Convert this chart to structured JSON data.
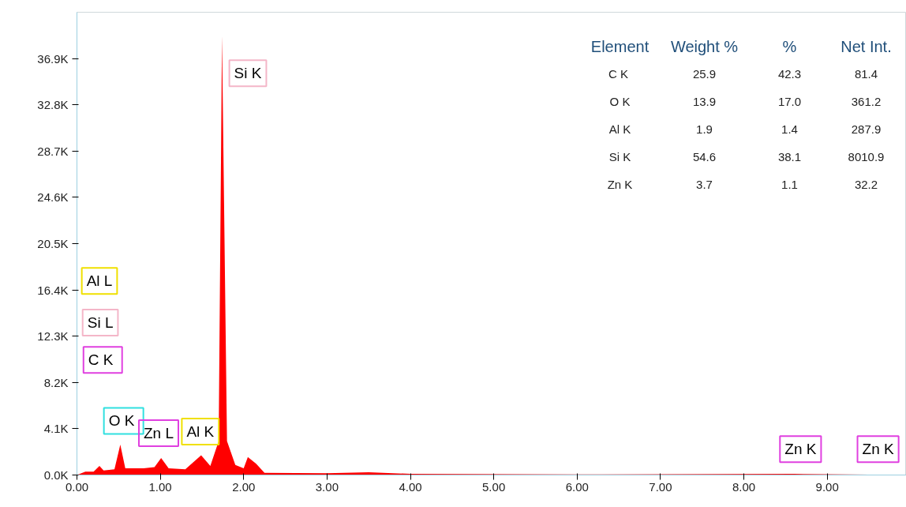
{
  "chart_data": {
    "type": "area",
    "color": "#ff0000",
    "x": [
      0,
      0.1,
      0.2,
      0.27,
      0.32,
      0.45,
      0.52,
      0.58,
      0.8,
      0.93,
      1.01,
      1.1,
      1.3,
      1.49,
      1.6,
      1.7,
      1.74,
      1.8,
      1.9,
      2.0,
      2.05,
      2.15,
      2.25,
      3.0,
      3.5,
      4.0,
      6.0,
      8.6,
      9.5,
      9.95
    ],
    "values": [
      0,
      0.3,
      0.3,
      0.8,
      0.4,
      0.5,
      2.7,
      0.6,
      0.6,
      0.7,
      1.5,
      0.6,
      0.5,
      1.75,
      0.8,
      3.0,
      38.9,
      3.0,
      0.9,
      0.6,
      1.6,
      1.0,
      0.2,
      0.15,
      0.25,
      0.1,
      0.05,
      0.1,
      0.03,
      0.03
    ],
    "xlim": [
      0,
      9.95
    ],
    "ylim": [
      0,
      41.0
    ],
    "xticks": [
      {
        "value": 0,
        "label": "0.00"
      },
      {
        "value": 1,
        "label": "1.00"
      },
      {
        "value": 2,
        "label": "2.00"
      },
      {
        "value": 3,
        "label": "3.00"
      },
      {
        "value": 4,
        "label": "4.00"
      },
      {
        "value": 5,
        "label": "5.00"
      },
      {
        "value": 6,
        "label": "6.00"
      },
      {
        "value": 7,
        "label": "7.00"
      },
      {
        "value": 8,
        "label": "8.00"
      },
      {
        "value": 9,
        "label": "9.00"
      }
    ],
    "yticks": [
      {
        "value": 0,
        "label": "0.0K"
      },
      {
        "value": 4.1,
        "label": "4.1K"
      },
      {
        "value": 8.2,
        "label": "8.2K"
      },
      {
        "value": 12.3,
        "label": "12.3K"
      },
      {
        "value": 16.4,
        "label": "16.4K"
      },
      {
        "value": 20.5,
        "label": "20.5K"
      },
      {
        "value": 24.6,
        "label": "24.6K"
      },
      {
        "value": 28.7,
        "label": "28.7K"
      },
      {
        "value": 32.8,
        "label": "32.8K"
      },
      {
        "value": 36.9,
        "label": "36.9K"
      }
    ],
    "grid": false,
    "annotations": [
      "Si K",
      "Al L",
      "Si L",
      "C  K",
      "O  K",
      "Zn L",
      "Al K",
      "Zn K",
      "Zn K",
      "Element",
      "Weight %",
      "%",
      "Net Int.",
      "C  K",
      "25.9",
      "42.3",
      "81.4",
      "O K",
      "13.9",
      "17.0",
      "361.2",
      "Al K",
      "1.9",
      "1.4",
      "287.9",
      "Si K",
      "54.6",
      "38.1",
      "8010.9",
      "Zn K",
      "3.7",
      "1.1",
      "32.2"
    ]
  }
}
